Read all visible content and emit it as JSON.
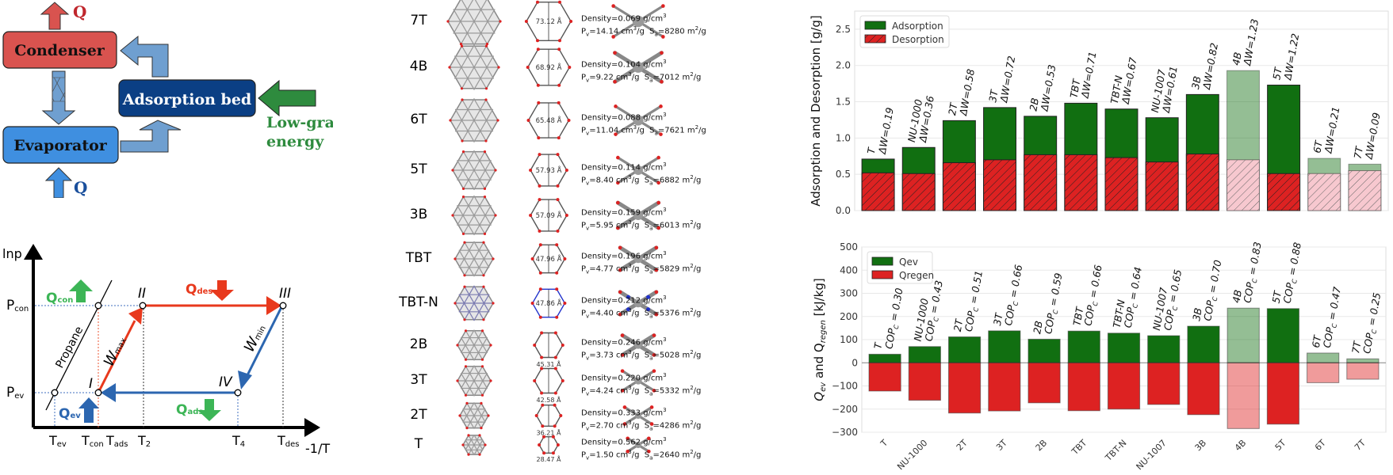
{
  "schematic": {
    "condenser": "Condenser",
    "evaporator": "Evaporator",
    "adsorption_bed": "Adsorption bed",
    "q_top": "Q",
    "q_bottom": "Q",
    "energy_line1": "Low-grade",
    "energy_line2": "energy",
    "colors": {
      "condenser": "#d9534f",
      "evaporator": "#3f8fe0",
      "bed": "#0b3f84",
      "arrow": "#6f9fd0",
      "energy": "#2e8b3e"
    }
  },
  "cycle": {
    "y_axis": "lnp",
    "x_axis": "-1/T",
    "p_con": "P",
    "p_con_sub": "con",
    "p_ev": "P",
    "p_ev_sub": "ev",
    "t_ev": "T",
    "t_ev_sub": "ev",
    "t_con": "T",
    "t_con_sub": "con",
    "t_ads": "T",
    "t_ads_sub": "ads",
    "t_2": "T",
    "t_2_sub": "2",
    "t_4": "T",
    "t_4_sub": "4",
    "t_des": "T",
    "t_des_sub": "des",
    "points": [
      "I",
      "II",
      "III",
      "IV"
    ],
    "q_con": "Q",
    "q_con_sub": "con",
    "q_des": "Q",
    "q_des_sub": "des",
    "q_ev": "Q",
    "q_ev_sub": "ev",
    "q_ads": "Q",
    "q_ads_sub": "ads",
    "w_max": "W",
    "w_max_sub": "max",
    "w_min": "W",
    "w_min_sub": "min",
    "propane": "Propane"
  },
  "mofs": [
    {
      "name": "7T",
      "pore": "73.12 Å",
      "density": "Density=0.069 g/cm",
      "pv": "P",
      "pv_val": "=14.14 cm",
      "sa_val": "=8280 m"
    },
    {
      "name": "4B",
      "pore": "68.92 Å",
      "density": "Density=0.104 g/cm",
      "pv": "P",
      "pv_val": "=9.22 cm",
      "sa_val": "=7012 m"
    },
    {
      "name": "6T",
      "pore": "65.48 Å",
      "density": "Density=0.088 g/cm",
      "pv": "P",
      "pv_val": "=11.04 cm",
      "sa_val": "=7621 m"
    },
    {
      "name": "5T",
      "pore": "57.93 Å",
      "density": "Density=0.114 g/cm",
      "pv": "P",
      "pv_val": "=8.40 cm",
      "sa_val": "=6882 m"
    },
    {
      "name": "3B",
      "pore": "57.09 Å",
      "density": "Density=0.159 g/cm",
      "pv": "P",
      "pv_val": "=5.95 cm",
      "sa_val": "=6013 m"
    },
    {
      "name": "TBT",
      "pore": "47.96 Å",
      "density": "Density=0.196 g/cm",
      "pv": "P",
      "pv_val": "=4.77 cm",
      "sa_val": "=5829 m"
    },
    {
      "name": "TBT-N",
      "pore": "47.86 Å",
      "density": "Density=0.212 g/cm",
      "pv": "P",
      "pv_val": "=4.40 cm",
      "sa_val": "=5376 m"
    },
    {
      "name": "2B",
      "pore": "45.31 Å",
      "density": "Density=0.246 g/cm",
      "pv": "P",
      "pv_val": "=3.73 cm",
      "sa_val": "=5028 m"
    },
    {
      "name": "3T",
      "pore": "42.58 Å",
      "density": "Density=0.220 g/cm",
      "pv": "P",
      "pv_val": "=4.24 cm",
      "sa_val": "=5332 m"
    },
    {
      "name": "2T",
      "pore": "36.21 Å",
      "density": "Density=0.333 g/cm",
      "pv": "P",
      "pv_val": "=2.70 cm",
      "sa_val": "=4286 m"
    },
    {
      "name": "T",
      "pore": "28.47 Å",
      "density": "Density=0.562 g/cm",
      "pv": "P",
      "pv_val": "=1.50 cm",
      "sa_val": "=2640 m"
    }
  ],
  "mof_units": {
    "sup3": "3",
    "sup2": "2",
    "v_sub": "v",
    "a_sub": "a",
    "per_g": "/g",
    "sa": "S"
  },
  "chart_data": [
    {
      "type": "bar",
      "title": "",
      "xlabel": "",
      "ylabel": "Adsorption and Desorption [g/g]",
      "ylim": [
        0,
        2.75
      ],
      "yticks": [
        "0.0",
        "0.5",
        "1.0",
        "1.5",
        "2.0",
        "2.5"
      ],
      "ytick_values": [
        0,
        0.5,
        1.0,
        1.5,
        2.0,
        2.5
      ],
      "grid": true,
      "legend_position": "top-left",
      "categories": [
        "T",
        "NU-1000",
        "2T",
        "3T",
        "2B",
        "TBT",
        "TBT-N",
        "NU-1007",
        "3B",
        "4B",
        "5T",
        "6T",
        "7T"
      ],
      "series": [
        {
          "name": "Adsorption",
          "color": "#116f11",
          "values": [
            0.71,
            0.87,
            1.24,
            1.42,
            1.3,
            1.48,
            1.4,
            1.28,
            1.6,
            1.93,
            1.73,
            0.72,
            0.64
          ]
        },
        {
          "name": "Desorption",
          "color": "#dd2222",
          "hatch": true,
          "values": [
            0.52,
            0.51,
            0.66,
            0.7,
            0.77,
            0.77,
            0.73,
            0.67,
            0.78,
            0.7,
            0.51,
            0.51,
            0.55
          ]
        }
      ],
      "faded": [
        false,
        false,
        false,
        false,
        false,
        false,
        false,
        false,
        false,
        true,
        false,
        true,
        true
      ],
      "annotations": [
        "ΔW=0.19",
        "ΔW=0.36",
        "ΔW=0.58",
        "ΔW=0.72",
        "ΔW=0.53",
        "ΔW=0.71",
        "ΔW=0.67",
        "ΔW=0.61",
        "ΔW=0.82",
        "ΔW=1.23",
        "ΔW=1.22",
        "ΔW=0.21",
        "ΔW=0.09"
      ]
    },
    {
      "type": "bar",
      "title": "",
      "xlabel": "",
      "ylabel": "Q",
      "ylabel_parts": [
        "Q",
        "ev",
        " and Q",
        "regen",
        " [kJ/kg]"
      ],
      "ylim": [
        -300,
        500
      ],
      "yticks": [
        "−300",
        "−200",
        "−100",
        "0",
        "100",
        "200",
        "300",
        "400",
        "500"
      ],
      "ytick_values": [
        -300,
        -200,
        -100,
        0,
        100,
        200,
        300,
        400,
        500
      ],
      "grid": true,
      "legend_position": "top-left",
      "categories": [
        "T",
        "NU-1000",
        "2T",
        "3T",
        "2B",
        "TBT",
        "TBT-N",
        "NU-1007",
        "3B",
        "4B",
        "5T",
        "6T",
        "7T"
      ],
      "series": [
        {
          "name": "Qev",
          "color": "#116f11",
          "values": [
            37,
            70,
            112,
            138,
            102,
            137,
            128,
            117,
            158,
            236,
            234,
            42,
            17
          ]
        },
        {
          "name": "Qregen",
          "color": "#dd2222",
          "values": [
            -122,
            -162,
            -217,
            -208,
            -173,
            -207,
            -200,
            -180,
            -224,
            -284,
            -265,
            -86,
            -71
          ]
        }
      ],
      "faded": [
        false,
        false,
        false,
        false,
        false,
        false,
        false,
        false,
        false,
        true,
        false,
        true,
        true
      ],
      "annotation_prefix": "COP",
      "annotation_sub": "C",
      "annotations": [
        " = 0.30",
        " = 0.43",
        " = 0.51",
        " = 0.66",
        " = 0.59",
        " = 0.66",
        " = 0.64",
        " = 0.65",
        " = 0.70",
        " = 0.83",
        " = 0.88",
        " = 0.47",
        " = 0.25"
      ]
    }
  ]
}
